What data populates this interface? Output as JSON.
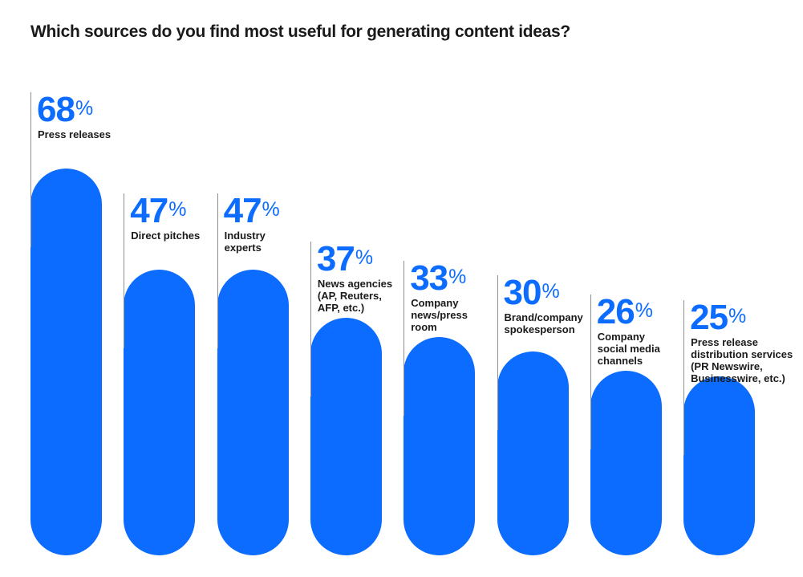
{
  "chart_data": {
    "type": "bar",
    "title": "Which sources do you find most useful for generating content ideas?",
    "categories": [
      "Press releases",
      "Direct pitches",
      "Industry\nexperts",
      "News agencies\n(AP, Reuters,\nAFP, etc.)",
      "Company\nnews/press\nroom",
      "Brand/company\nspokesperson",
      "Company\nsocial media\nchannels",
      "Press release\ndistribution services\n(PR Newswire,\nBusinesswire, etc.)"
    ],
    "values": [
      68,
      47,
      47,
      37,
      33,
      30,
      26,
      25
    ],
    "unit": "%",
    "xlabel": "",
    "ylabel": "",
    "ylim": [
      0,
      100
    ],
    "grid": false,
    "colors": {
      "bar": "#0b6cff",
      "label": "#0b6cff"
    }
  }
}
